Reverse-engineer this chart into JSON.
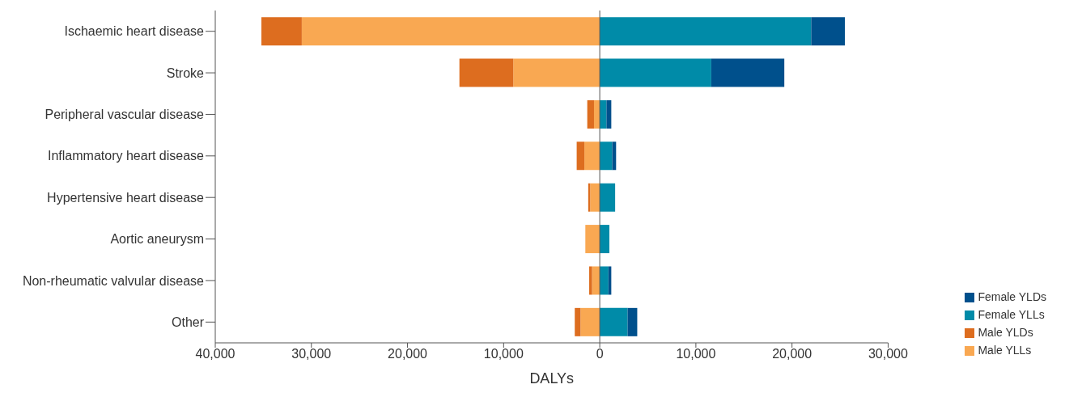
{
  "chart_data": {
    "type": "bar",
    "orientation": "horizontal",
    "stacked": true,
    "xlabel": "DALYs",
    "categories": [
      "Ischaemic heart disease",
      "Stroke",
      "Peripheral vascular disease",
      "Inflammatory heart disease",
      "Hypertensive heart disease",
      "Aortic aneurysm",
      "Non-rheumatic valvular disease",
      "Other"
    ],
    "series": [
      {
        "name": "Male YLLs",
        "color": "#f9a852",
        "values": [
          -31000,
          -9000,
          -600,
          -1600,
          -1000,
          -1500,
          -800,
          -2000
        ]
      },
      {
        "name": "Male YLDs",
        "color": "#dd6d1f",
        "values": [
          -4200,
          -5600,
          -700,
          -800,
          -200,
          0,
          -300,
          -600
        ]
      },
      {
        "name": "Female YLLs",
        "color": "#008ba8",
        "values": [
          22000,
          11600,
          700,
          1300,
          1600,
          1000,
          900,
          2900
        ]
      },
      {
        "name": "Female YLDs",
        "color": "#00508c",
        "values": [
          3500,
          7600,
          500,
          400,
          0,
          0,
          300,
          1000
        ]
      }
    ],
    "xlim": [
      -40000,
      30000
    ],
    "xticks": [
      {
        "value": -40000,
        "label": "40,000"
      },
      {
        "value": -30000,
        "label": "30,000"
      },
      {
        "value": -20000,
        "label": "20,000"
      },
      {
        "value": -10000,
        "label": "10,000"
      },
      0,
      {
        "value": 10000,
        "label": "10,000"
      },
      {
        "value": 20000,
        "label": "20,000"
      },
      {
        "value": 30000,
        "label": "30,000"
      }
    ],
    "ref_lines": [
      {
        "axis": "x",
        "value": 0,
        "color": "#555555"
      }
    ],
    "grid": false,
    "legend": "bottom right"
  }
}
